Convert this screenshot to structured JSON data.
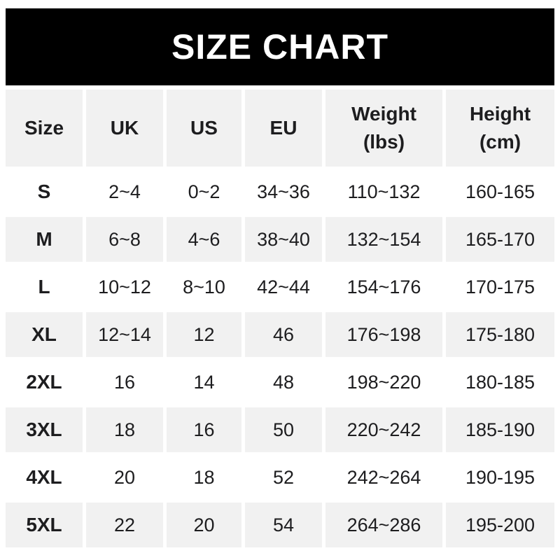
{
  "title": "SIZE CHART",
  "colors": {
    "title_bar_bg": "#000000",
    "title_text": "#ffffff",
    "striped_row_bg": "#f1f1f1",
    "text": "#1d1d1f"
  },
  "chart_data": {
    "type": "table",
    "title": "SIZE CHART",
    "columns": [
      {
        "label": "Size",
        "sub": ""
      },
      {
        "label": "UK",
        "sub": ""
      },
      {
        "label": "US",
        "sub": ""
      },
      {
        "label": "EU",
        "sub": ""
      },
      {
        "label": "Weight",
        "sub": "(lbs)"
      },
      {
        "label": "Height",
        "sub": "(cm)"
      }
    ],
    "rows": [
      {
        "size": "S",
        "uk": "2~4",
        "us": "0~2",
        "eu": "34~36",
        "weight": "110~132",
        "height": "160-165"
      },
      {
        "size": "M",
        "uk": "6~8",
        "us": "4~6",
        "eu": "38~40",
        "weight": "132~154",
        "height": "165-170"
      },
      {
        "size": "L",
        "uk": "10~12",
        "us": "8~10",
        "eu": "42~44",
        "weight": "154~176",
        "height": "170-175"
      },
      {
        "size": "XL",
        "uk": "12~14",
        "us": "12",
        "eu": "46",
        "weight": "176~198",
        "height": "175-180"
      },
      {
        "size": "2XL",
        "uk": "16",
        "us": "14",
        "eu": "48",
        "weight": "198~220",
        "height": "180-185"
      },
      {
        "size": "3XL",
        "uk": "18",
        "us": "16",
        "eu": "50",
        "weight": "220~242",
        "height": "185-190"
      },
      {
        "size": "4XL",
        "uk": "20",
        "us": "18",
        "eu": "52",
        "weight": "242~264",
        "height": "190-195"
      },
      {
        "size": "5XL",
        "uk": "22",
        "us": "20",
        "eu": "54",
        "weight": "264~286",
        "height": "195-200"
      }
    ]
  }
}
